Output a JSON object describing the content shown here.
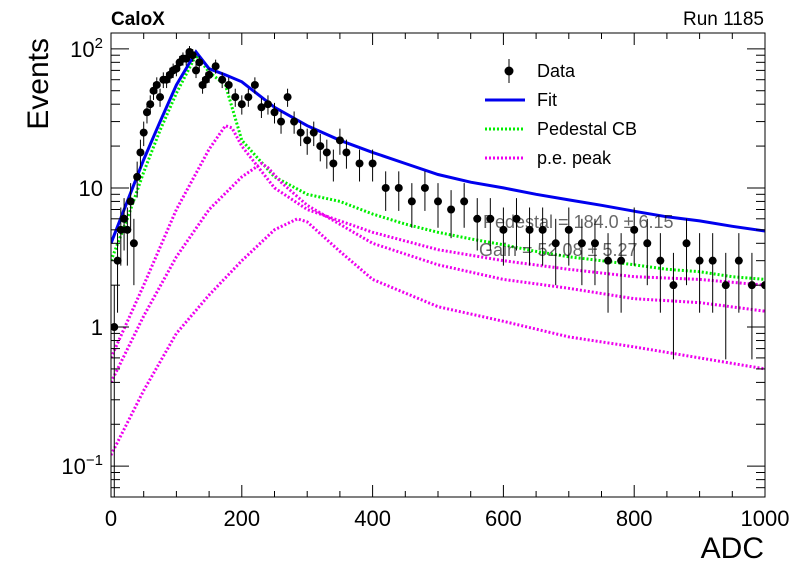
{
  "header": {
    "experiment": "CaloX",
    "run": "Run 1185"
  },
  "fit_info": {
    "pedestal": "Pedestal = 184.0 ± 6.15",
    "gain": "Gain = 52.08 ± 5.27"
  },
  "chart_data": {
    "type": "scatter",
    "title": "",
    "xlabel": "ADC",
    "ylabel": "Events",
    "xlim": [
      0,
      1000
    ],
    "ylim": [
      0.06,
      130
    ],
    "yscale": "log",
    "xticks": [
      "0",
      "200",
      "400",
      "600",
      "800",
      "1000"
    ],
    "yticks": [
      {
        "value": 0.1,
        "base": "10",
        "exp": "−1"
      },
      {
        "value": 1,
        "base": "1",
        "exp": ""
      },
      {
        "value": 10,
        "base": "10",
        "exp": ""
      },
      {
        "value": 100,
        "base": "10",
        "exp": "2"
      }
    ],
    "grid": false,
    "legend_position": "top-right",
    "legend": [
      {
        "name": "Data",
        "style": "marker",
        "color": "#000000"
      },
      {
        "name": "Fit",
        "style": "solid",
        "color": "#0000ee"
      },
      {
        "name": "Pedestal CB",
        "style": "dotted",
        "color": "#00ee00"
      },
      {
        "name": "p.e. peak",
        "style": "dotted",
        "color": "#ee00ee"
      }
    ],
    "data": {
      "x": [
        5,
        10,
        15,
        20,
        25,
        30,
        35,
        40,
        45,
        50,
        55,
        60,
        65,
        70,
        75,
        80,
        85,
        90,
        95,
        100,
        105,
        110,
        115,
        120,
        125,
        130,
        135,
        140,
        145,
        150,
        160,
        170,
        180,
        190,
        200,
        210,
        220,
        230,
        240,
        250,
        260,
        270,
        280,
        290,
        300,
        310,
        320,
        330,
        340,
        350,
        360,
        380,
        400,
        420,
        440,
        460,
        480,
        500,
        520,
        540,
        560,
        580,
        600,
        620,
        640,
        660,
        680,
        700,
        720,
        740,
        760,
        780,
        800,
        820,
        840,
        860,
        880,
        900,
        920,
        940,
        960,
        980,
        1000
      ],
      "y": [
        1,
        3,
        5,
        6,
        5,
        8,
        4,
        12,
        18,
        25,
        35,
        40,
        50,
        55,
        45,
        60,
        60,
        65,
        70,
        72,
        80,
        85,
        85,
        95,
        90,
        70,
        80,
        55,
        60,
        65,
        75,
        60,
        55,
        45,
        40,
        45,
        55,
        38,
        40,
        35,
        30,
        45,
        30,
        25,
        22,
        25,
        20,
        18,
        15,
        22,
        18,
        15,
        15,
        10,
        10,
        8,
        10,
        8,
        7,
        8,
        6,
        6,
        5,
        6,
        5,
        5,
        4,
        5,
        4,
        4,
        3,
        3,
        5,
        4,
        3,
        2,
        4,
        3,
        3,
        2,
        3,
        2,
        2
      ]
    },
    "series": [
      {
        "name": "Fit",
        "x": [
          0,
          25,
          50,
          75,
          100,
          130,
          150,
          175,
          200,
          250,
          300,
          350,
          400,
          450,
          500,
          550,
          600,
          650,
          700,
          750,
          800,
          850,
          900,
          950,
          1000
        ],
        "y": [
          4,
          8,
          16,
          30,
          55,
          95,
          72,
          65,
          58,
          38,
          28,
          22,
          18,
          15,
          12.5,
          11,
          10,
          9,
          8.2,
          7.5,
          6.8,
          6.2,
          5.8,
          5.3,
          4.9
        ]
      },
      {
        "name": "Pedestal CB",
        "x": [
          0,
          25,
          50,
          75,
          100,
          130,
          150,
          175,
          200,
          250,
          300,
          350,
          400,
          450,
          500,
          550,
          600,
          650,
          700,
          750,
          800,
          850,
          900,
          950,
          1000
        ],
        "y": [
          3,
          6,
          13,
          26,
          48,
          90,
          68,
          55,
          22,
          12,
          9,
          8,
          6.5,
          5.5,
          4.8,
          4.3,
          3.9,
          3.5,
          3.2,
          3,
          2.8,
          2.6,
          2.5,
          2.3,
          2.2
        ]
      },
      {
        "name": "p.e. peak",
        "x": [
          0,
          50,
          100,
          150,
          175,
          185,
          200,
          250,
          300,
          400,
          500,
          600,
          700,
          800,
          900,
          1000
        ],
        "y": [
          0.6,
          2,
          7,
          19,
          28,
          27,
          20,
          10,
          7,
          4.8,
          3.6,
          3,
          2.6,
          2.3,
          2.2,
          2
        ]
      },
      {
        "name": "p.e. peak",
        "x": [
          0,
          50,
          100,
          150,
          200,
          230,
          240,
          260,
          300,
          400,
          500,
          600,
          700,
          800,
          900,
          1000
        ],
        "y": [
          0.4,
          1.2,
          3.2,
          7,
          12,
          15,
          14,
          11,
          7.5,
          4,
          2.8,
          2.2,
          1.9,
          1.6,
          1.5,
          1.3
        ]
      },
      {
        "name": "p.e. peak",
        "x": [
          0,
          50,
          100,
          150,
          200,
          250,
          285,
          300,
          350,
          400,
          500,
          600,
          700,
          800,
          900,
          1000
        ],
        "y": [
          0.12,
          0.35,
          0.9,
          1.7,
          3,
          5,
          6,
          5.7,
          3.5,
          2.2,
          1.4,
          1.1,
          0.85,
          0.72,
          0.6,
          0.5
        ]
      }
    ]
  }
}
